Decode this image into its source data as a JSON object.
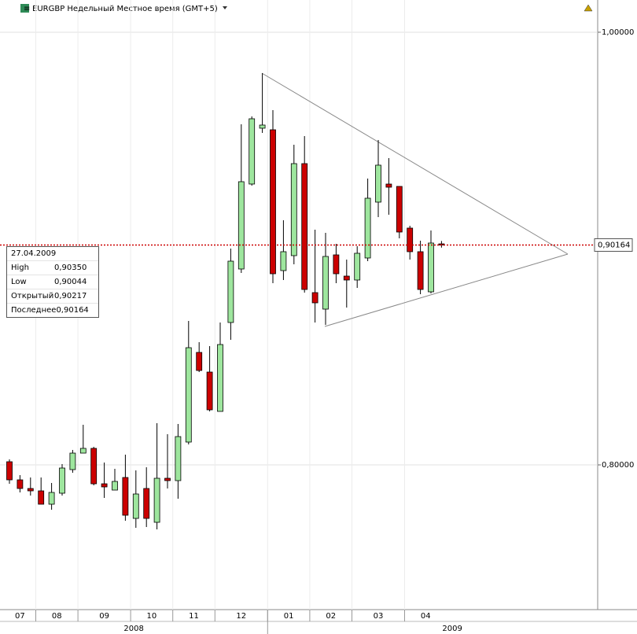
{
  "chart_data": {
    "type": "candlestick",
    "title": "EURGBP Недельный Местное время (GMT+5)",
    "categories": [
      "07",
      "07",
      "07",
      "08",
      "08",
      "08",
      "08",
      "09",
      "09",
      "09",
      "09",
      "09",
      "10",
      "10",
      "10",
      "10",
      "11",
      "11",
      "11",
      "11",
      "12",
      "12",
      "12",
      "12",
      "12",
      "01",
      "01",
      "01",
      "01",
      "02",
      "02",
      "02",
      "02",
      "03",
      "03",
      "03",
      "03",
      "03",
      "04",
      "04",
      "04",
      "04"
    ],
    "years": [
      "2008",
      "2008",
      "2008",
      "2008",
      "2008",
      "2008",
      "2008",
      "2008",
      "2008",
      "2008",
      "2008",
      "2008",
      "2008",
      "2008",
      "2008",
      "2008",
      "2008",
      "2008",
      "2008",
      "2008",
      "2008",
      "2008",
      "2008",
      "2008",
      "2008",
      "2009",
      "2009",
      "2009",
      "2009",
      "2009",
      "2009",
      "2009",
      "2009",
      "2009",
      "2009",
      "2009",
      "2009",
      "2009",
      "2009",
      "2009",
      "2009",
      "2009"
    ],
    "open": [
      0.80146,
      0.79309,
      0.78909,
      0.788,
      0.78182,
      0.78691,
      0.79782,
      0.80545,
      0.80764,
      0.79127,
      0.78836,
      0.79418,
      0.77527,
      0.78909,
      0.77346,
      0.79382,
      0.79273,
      0.81055,
      0.852,
      0.84291,
      0.82473,
      0.86582,
      0.89055,
      0.92982,
      0.95564,
      0.95491,
      0.88982,
      0.89673,
      0.93927,
      0.87964,
      0.872,
      0.89709,
      0.88727,
      0.88546,
      0.89564,
      0.92146,
      0.92982,
      0.92873,
      0.90946,
      0.89855,
      0.88,
      0.90217
    ],
    "high": [
      0.80255,
      0.79527,
      0.79418,
      0.79418,
      0.79164,
      0.80036,
      0.80691,
      0.81855,
      0.80836,
      0.80109,
      0.79818,
      0.80473,
      0.79746,
      0.79891,
      0.81927,
      0.81418,
      0.81891,
      0.86655,
      0.85673,
      0.85491,
      0.86582,
      0.9,
      0.95746,
      0.96109,
      0.98109,
      0.964,
      0.91309,
      0.948,
      0.952,
      0.90873,
      0.90727,
      0.90218,
      0.89491,
      0.90109,
      0.93236,
      0.95018,
      0.94182,
      0.92873,
      0.91055,
      0.90364,
      0.90836,
      0.9035
    ],
    "low": [
      0.79127,
      0.78727,
      0.78582,
      0.78182,
      0.77927,
      0.78582,
      0.79636,
      0.80545,
      0.79055,
      0.78473,
      0.78836,
      0.77418,
      0.77091,
      0.77127,
      0.77018,
      0.78909,
      0.78436,
      0.80946,
      0.84291,
      0.82473,
      0.82473,
      0.85782,
      0.88873,
      0.92909,
      0.95346,
      0.884,
      0.88546,
      0.89273,
      0.87964,
      0.86582,
      0.86473,
      0.884,
      0.87273,
      0.88182,
      0.89418,
      0.91455,
      0.91564,
      0.90473,
      0.89491,
      0.87891,
      0.87927,
      0.90044
    ],
    "close": [
      0.79309,
      0.78909,
      0.788,
      0.78182,
      0.78727,
      0.79855,
      0.80545,
      0.80764,
      0.79127,
      0.78982,
      0.79236,
      0.77673,
      0.78655,
      0.77527,
      0.79382,
      0.79273,
      0.81309,
      0.85418,
      0.84364,
      0.82546,
      0.85564,
      0.89418,
      0.93091,
      0.96,
      0.95709,
      0.88836,
      0.89855,
      0.93927,
      0.88109,
      0.87491,
      0.89636,
      0.88836,
      0.88546,
      0.89782,
      0.92327,
      0.93855,
      0.92836,
      0.90764,
      0.89855,
      0.88109,
      0.90255,
      0.90164
    ],
    "up_color": "#9ee69e",
    "down_color": "#cc0000",
    "ylim": [
      0.7331,
      1.0149
    ],
    "yticks": [
      {
        "value": 0.8,
        "label": "0,80000"
      },
      {
        "value": 1,
        "label": "1,00000"
      }
    ],
    "last_label": "0,90164",
    "info_box": {
      "date": "27.04.2009",
      "rows": [
        [
          "High",
          "0,90350"
        ],
        [
          "Low",
          "0,90044"
        ],
        [
          "Открытый",
          "0,90217"
        ],
        [
          "Последнее",
          "0,90164"
        ]
      ]
    }
  }
}
